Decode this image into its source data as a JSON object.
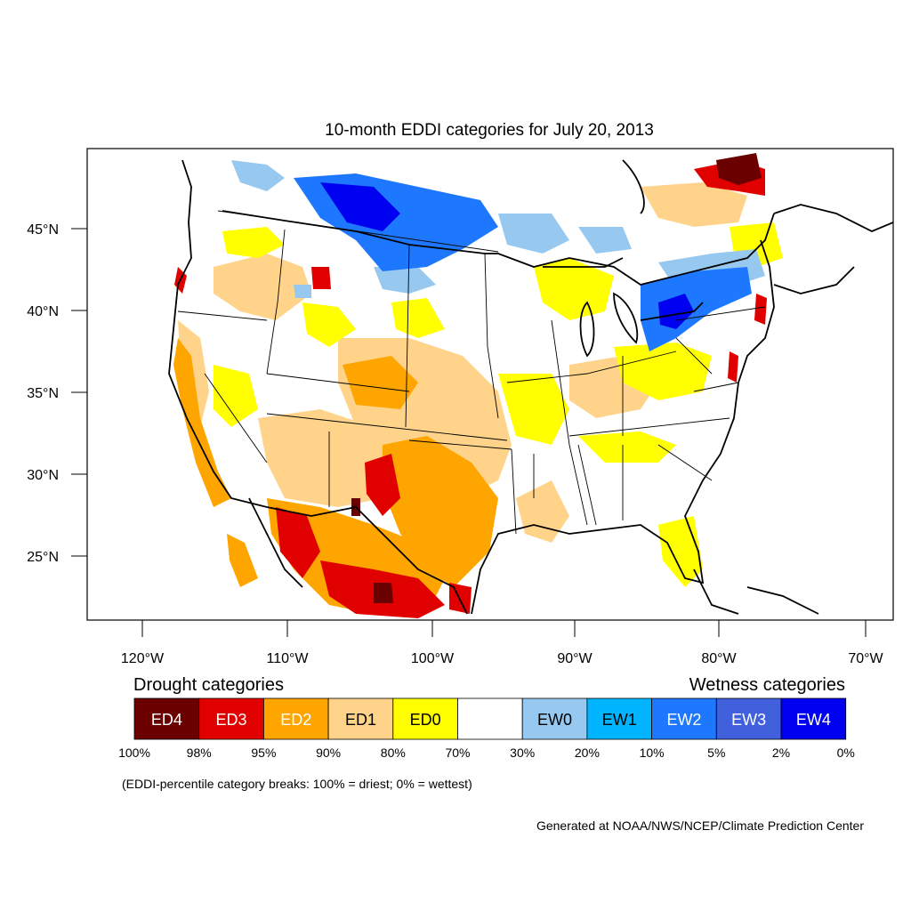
{
  "title": "10-month EDDI categories for July 20, 2013",
  "lat_ticks": [
    "45°N",
    "40°N",
    "35°N",
    "30°N",
    "25°N"
  ],
  "lon_ticks": [
    "120°W",
    "110°W",
    "100°W",
    "90°W",
    "80°W",
    "70°W"
  ],
  "legend": {
    "drought_title": "Drought categories",
    "wetness_title": "Wetness categories",
    "categories": [
      {
        "label": "ED4",
        "color": "#6b0000",
        "text_color": "#ffffff"
      },
      {
        "label": "ED3",
        "color": "#e00000",
        "text_color": "#ffffff"
      },
      {
        "label": "ED2",
        "color": "#ffa500",
        "text_color": "#ffffff"
      },
      {
        "label": "ED1",
        "color": "#ffd48a",
        "text_color": "#000000"
      },
      {
        "label": "ED0",
        "color": "#ffff00",
        "text_color": "#000000"
      },
      {
        "label": "",
        "color": "#ffffff",
        "text_color": "#000000"
      },
      {
        "label": "EW0",
        "color": "#96c8f0",
        "text_color": "#000000"
      },
      {
        "label": "EW1",
        "color": "#00b4ff",
        "text_color": "#000000"
      },
      {
        "label": "EW2",
        "color": "#1e78ff",
        "text_color": "#ffffff"
      },
      {
        "label": "EW3",
        "color": "#4060dc",
        "text_color": "#ffffff"
      },
      {
        "label": "EW4",
        "color": "#0000f0",
        "text_color": "#ffffff"
      }
    ],
    "percentiles": [
      "100%",
      "98%",
      "95%",
      "90%",
      "80%",
      "70%",
      "30%",
      "20%",
      "10%",
      "5%",
      "2%",
      "0%"
    ]
  },
  "note": "(EDDI-percentile category breaks: 100% = driest; 0% = wettest)",
  "credit": "Generated at NOAA/NWS/NCEP/Climate Prediction Center"
}
